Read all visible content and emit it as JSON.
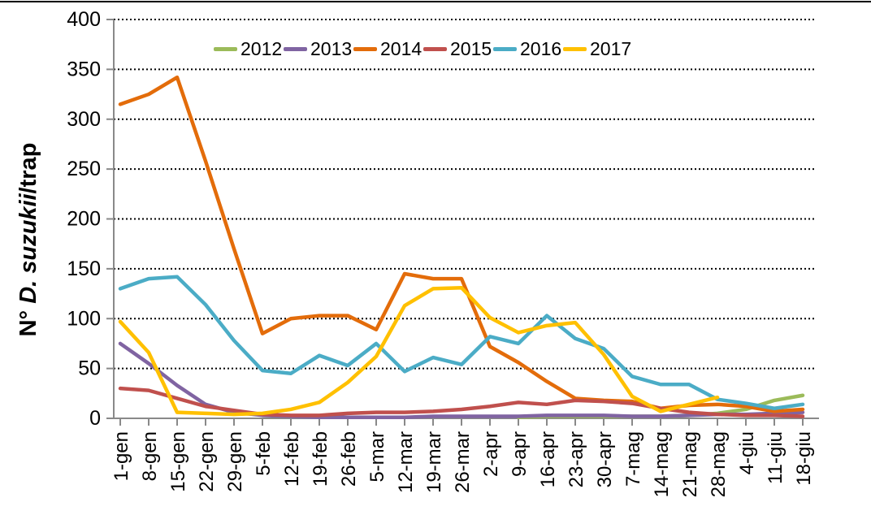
{
  "chart_data": {
    "type": "line",
    "title": "",
    "ylabel_prefix": "N° ",
    "ylabel_italic": "D. suzukii",
    "ylabel_suffix": "/trap",
    "xlabel": "",
    "ylim": [
      0,
      400
    ],
    "y_ticks": [
      "0",
      "50",
      "100",
      "150",
      "200",
      "250",
      "300",
      "350",
      "400"
    ],
    "grid": "horizontal dotted black",
    "legend_position": "top",
    "categories": [
      "1-gen",
      "8-gen",
      "15-gen",
      "22-gen",
      "29-gen",
      "5-feb",
      "12-feb",
      "19-feb",
      "26-feb",
      "5-mar",
      "12-mar",
      "19-mar",
      "26-mar",
      "2-apr",
      "9-apr",
      "16-apr",
      "23-apr",
      "30-apr",
      "7-mag",
      "14-mag",
      "21-mag",
      "28-mag",
      "4-giu",
      "11-giu",
      "18-giu"
    ],
    "series": [
      {
        "name": "2012",
        "color": "#9BBB59",
        "values": [
          null,
          null,
          null,
          null,
          null,
          null,
          null,
          null,
          null,
          null,
          null,
          null,
          null,
          null,
          1,
          2,
          2,
          2,
          2,
          2,
          3,
          5,
          9,
          18,
          23
        ]
      },
      {
        "name": "2013",
        "color": "#8064A2",
        "values": [
          75,
          55,
          33,
          14,
          6,
          3,
          2,
          1,
          1,
          1,
          1,
          2,
          2,
          2,
          2,
          3,
          3,
          3,
          2,
          2,
          3,
          4,
          4,
          5,
          6
        ]
      },
      {
        "name": "2014",
        "color": "#E36C0A",
        "values": [
          315,
          325,
          342,
          258,
          170,
          85,
          100,
          103,
          103,
          89,
          145,
          140,
          140,
          72,
          56,
          37,
          20,
          18,
          17,
          10,
          13,
          14,
          12,
          7,
          9
        ]
      },
      {
        "name": "2015",
        "color": "#C0504D",
        "values": [
          30,
          28,
          20,
          12,
          8,
          4,
          3,
          3,
          5,
          6,
          6,
          7,
          9,
          12,
          16,
          14,
          18,
          17,
          15,
          10,
          6,
          4,
          3,
          3,
          2
        ]
      },
      {
        "name": "2016",
        "color": "#4BACC6",
        "values": [
          130,
          140,
          142,
          114,
          78,
          48,
          45,
          63,
          53,
          75,
          47,
          61,
          54,
          82,
          75,
          103,
          80,
          70,
          42,
          34,
          34,
          19,
          15,
          10,
          14
        ]
      },
      {
        "name": "2017",
        "color": "#FFC000",
        "values": [
          97,
          66,
          6,
          5,
          4,
          5,
          9,
          16,
          36,
          62,
          113,
          130,
          131,
          101,
          86,
          93,
          96,
          64,
          22,
          7,
          14,
          21,
          null,
          null,
          null
        ]
      }
    ]
  }
}
